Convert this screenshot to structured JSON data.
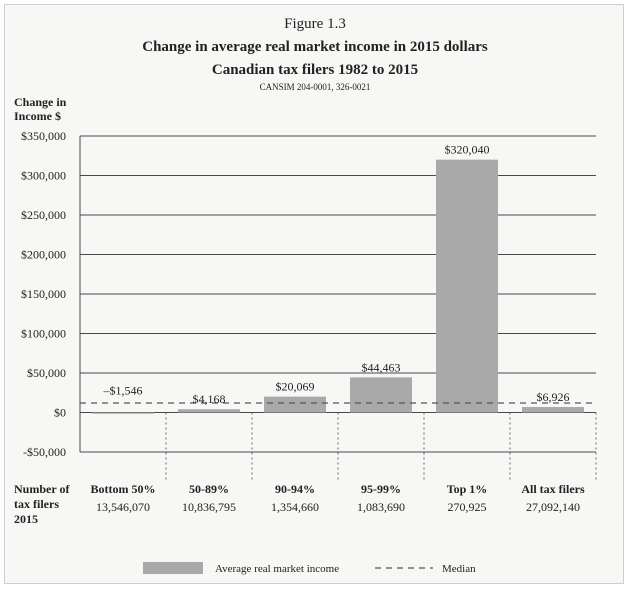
{
  "figure_label": "Figure 1.3",
  "title_line1": "Change in average real market income in 2015 dollars",
  "title_line2": "Canadian tax filers 1982 to 2015",
  "source": "CANSIM 204-0001, 326-0021",
  "y_axis_label_line1": "Change in",
  "y_axis_label_line2": "Income $",
  "row_header_line1": "Number of",
  "row_header_line2": "tax filers",
  "row_header_line3": "2015",
  "legend": {
    "bar_label": "Average real market income",
    "median_label": "Median"
  },
  "colors": {
    "bar": "#a9a9a9",
    "grid": "#4a4a4a",
    "median": "#555555"
  },
  "chart_data": {
    "type": "bar",
    "categories": [
      "Bottom 50%",
      "50-89%",
      "90-94%",
      "95-99%",
      "Top 1%",
      "All tax filers"
    ],
    "series": [
      {
        "name": "Average real market income",
        "values": [
          -1546,
          4168,
          20069,
          44463,
          320040,
          6926
        ]
      }
    ],
    "data_labels": [
      "–$1,546",
      "$4,168",
      "$20,069",
      "$44,463",
      "$320,040",
      "$6,926"
    ],
    "tax_filers_2015": [
      "13,546,070",
      "10,836,795",
      "1,354,660",
      "1,083,690",
      "270,925",
      "27,092,140"
    ],
    "median_value": 12000,
    "yticks": [
      -50000,
      0,
      50000,
      100000,
      150000,
      200000,
      250000,
      300000,
      350000
    ],
    "ytick_labels": [
      "-$50,000",
      "$0",
      "$50,000",
      "$100,000",
      "$150,000",
      "$200,000",
      "$250,000",
      "$300,000",
      "$350,000"
    ],
    "ylim": [
      -50000,
      350000
    ],
    "grid": true,
    "legend_position": "bottom"
  }
}
